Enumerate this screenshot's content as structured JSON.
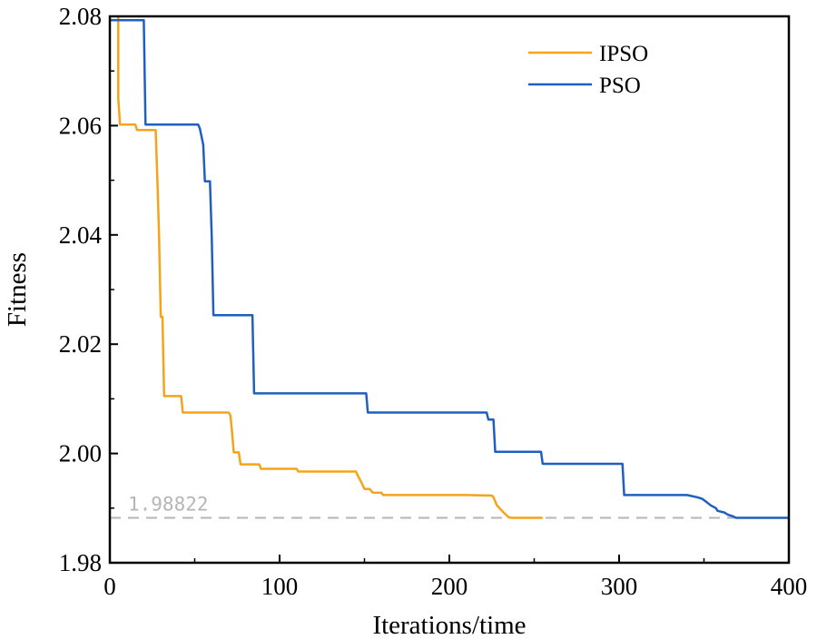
{
  "chart_data": {
    "type": "line",
    "title": "",
    "xlabel": "Iterations/time",
    "ylabel": "Fitness",
    "xlim": [
      0,
      400
    ],
    "ylim": [
      1.98,
      2.08
    ],
    "xticks": [
      0,
      100,
      200,
      300,
      400
    ],
    "yticks": [
      1.98,
      2.0,
      2.02,
      2.04,
      2.06,
      2.08
    ],
    "xtick_labels": [
      "0",
      "100",
      "200",
      "300",
      "400"
    ],
    "ytick_labels": [
      "1.98",
      "2.00",
      "2.02",
      "2.04",
      "2.06",
      "2.08"
    ],
    "legend_position": "top-right",
    "reference_line": {
      "y": 1.98822,
      "label": "1.98822",
      "color": "#b5b5b5"
    },
    "series": [
      {
        "name": "IPSO",
        "color": "#f5a31a",
        "x": [
          5,
          5,
          6,
          15,
          16,
          27,
          28,
          29,
          30,
          31,
          32,
          33,
          34,
          42,
          43,
          70,
          71,
          72,
          73,
          76,
          77,
          81,
          82,
          88,
          89,
          110,
          111,
          145,
          146,
          148,
          150,
          153,
          155,
          160,
          161,
          210,
          225,
          226,
          228,
          232,
          235,
          237,
          240,
          255
        ],
        "y": [
          2.08,
          2.065,
          2.0602,
          2.0602,
          2.0592,
          2.0592,
          2.05,
          2.04,
          2.025,
          2.025,
          2.0105,
          2.0105,
          2.0105,
          2.0105,
          2.0075,
          2.0075,
          2.007,
          2.004,
          2.0002,
          2.0002,
          1.998,
          1.998,
          1.998,
          1.998,
          1.9972,
          1.9972,
          1.9967,
          1.9967,
          1.996,
          1.9948,
          1.9935,
          1.9935,
          1.9928,
          1.9928,
          1.9924,
          1.9924,
          1.9923,
          1.992,
          1.9905,
          1.9892,
          1.9883,
          1.98822,
          1.98822,
          1.98822
        ]
      },
      {
        "name": "PSO",
        "color": "#1f5fbf",
        "x": [
          0,
          20,
          21,
          52,
          53,
          55,
          56,
          59,
          60,
          61,
          62,
          84,
          85,
          151,
          152,
          222,
          223,
          226,
          227,
          254,
          255,
          302,
          303,
          340,
          343,
          346,
          349,
          352,
          354,
          357,
          358,
          362,
          364,
          367,
          369,
          400
        ],
        "y": [
          2.0793,
          2.0793,
          2.0602,
          2.0602,
          2.0595,
          2.0565,
          2.0498,
          2.0498,
          2.04,
          2.0253,
          2.0253,
          2.0253,
          2.011,
          2.011,
          2.0075,
          2.0075,
          2.0062,
          2.0062,
          2.0003,
          2.0003,
          1.9981,
          1.9981,
          1.9924,
          1.9924,
          1.9922,
          1.992,
          1.9917,
          1.991,
          1.9905,
          1.99,
          1.9895,
          1.9892,
          1.9888,
          1.9885,
          1.98822,
          1.98822
        ]
      }
    ]
  }
}
